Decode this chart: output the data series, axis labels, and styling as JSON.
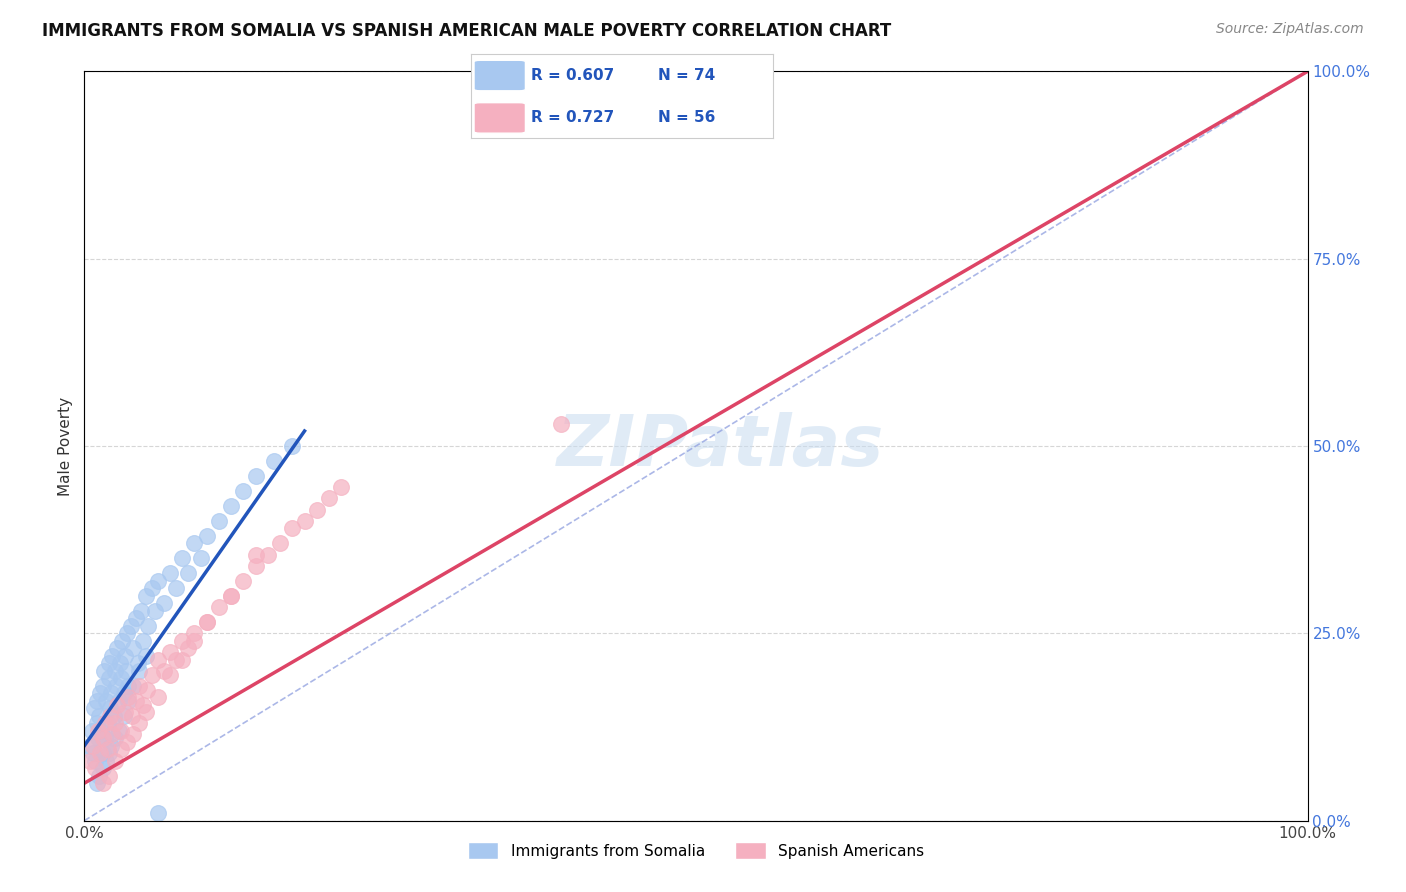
{
  "title": "IMMIGRANTS FROM SOMALIA VS SPANISH AMERICAN MALE POVERTY CORRELATION CHART",
  "source": "Source: ZipAtlas.com",
  "ylabel": "Male Poverty",
  "xlim": [
    0,
    1
  ],
  "ylim": [
    0,
    1
  ],
  "y_ticks_right": [
    0.0,
    0.25,
    0.5,
    0.75,
    1.0
  ],
  "y_tick_labels_right": [
    "0.0%",
    "25.0%",
    "50.0%",
    "75.0%",
    "100.0%"
  ],
  "blue_color": "#A8C8F0",
  "pink_color": "#F5B0C0",
  "blue_line_color": "#2255BB",
  "pink_line_color": "#DD4466",
  "diag_color": "#8899DD",
  "R_blue": 0.607,
  "N_blue": 74,
  "R_pink": 0.727,
  "N_pink": 56,
  "legend_label_blue": "Immigrants from Somalia",
  "legend_label_pink": "Spanish Americans",
  "watermark_text": "ZIPatlas",
  "blue_trend_x": [
    0.0,
    0.18
  ],
  "blue_trend_y": [
    0.1,
    0.52
  ],
  "pink_trend_x": [
    0.0,
    1.0
  ],
  "pink_trend_y": [
    0.05,
    1.0
  ],
  "title_fontsize": 12,
  "axis_label_fontsize": 11,
  "tick_fontsize": 11,
  "source_fontsize": 10,
  "background_color": "#FFFFFF",
  "grid_color": "#CCCCCC",
  "blue_scatter_x": [
    0.005,
    0.006,
    0.007,
    0.008,
    0.009,
    0.01,
    0.01,
    0.011,
    0.012,
    0.013,
    0.014,
    0.015,
    0.015,
    0.016,
    0.017,
    0.018,
    0.019,
    0.02,
    0.02,
    0.021,
    0.022,
    0.023,
    0.024,
    0.025,
    0.026,
    0.027,
    0.028,
    0.029,
    0.03,
    0.031,
    0.032,
    0.033,
    0.034,
    0.035,
    0.036,
    0.038,
    0.04,
    0.042,
    0.044,
    0.046,
    0.048,
    0.05,
    0.052,
    0.055,
    0.058,
    0.06,
    0.065,
    0.07,
    0.075,
    0.08,
    0.085,
    0.09,
    0.095,
    0.1,
    0.11,
    0.12,
    0.13,
    0.14,
    0.155,
    0.17,
    0.01,
    0.012,
    0.015,
    0.018,
    0.02,
    0.022,
    0.025,
    0.028,
    0.032,
    0.036,
    0.04,
    0.045,
    0.05,
    0.06
  ],
  "blue_scatter_y": [
    0.1,
    0.12,
    0.09,
    0.15,
    0.08,
    0.13,
    0.16,
    0.11,
    0.14,
    0.17,
    0.12,
    0.18,
    0.09,
    0.2,
    0.11,
    0.16,
    0.13,
    0.19,
    0.21,
    0.15,
    0.17,
    0.22,
    0.14,
    0.2,
    0.18,
    0.23,
    0.16,
    0.21,
    0.19,
    0.24,
    0.17,
    0.22,
    0.2,
    0.25,
    0.18,
    0.26,
    0.23,
    0.27,
    0.21,
    0.28,
    0.24,
    0.3,
    0.26,
    0.31,
    0.28,
    0.32,
    0.29,
    0.33,
    0.31,
    0.35,
    0.33,
    0.37,
    0.35,
    0.38,
    0.4,
    0.42,
    0.44,
    0.46,
    0.48,
    0.5,
    0.05,
    0.06,
    0.07,
    0.08,
    0.09,
    0.1,
    0.11,
    0.12,
    0.14,
    0.16,
    0.18,
    0.2,
    0.22,
    0.01
  ],
  "pink_scatter_x": [
    0.005,
    0.007,
    0.009,
    0.011,
    0.013,
    0.015,
    0.017,
    0.019,
    0.021,
    0.023,
    0.025,
    0.027,
    0.03,
    0.033,
    0.036,
    0.039,
    0.042,
    0.045,
    0.048,
    0.051,
    0.055,
    0.06,
    0.065,
    0.07,
    0.075,
    0.08,
    0.085,
    0.09,
    0.1,
    0.11,
    0.12,
    0.13,
    0.14,
    0.15,
    0.16,
    0.17,
    0.18,
    0.19,
    0.2,
    0.21,
    0.015,
    0.02,
    0.025,
    0.03,
    0.035,
    0.04,
    0.045,
    0.05,
    0.06,
    0.07,
    0.08,
    0.09,
    0.1,
    0.12,
    0.14,
    0.39
  ],
  "pink_scatter_y": [
    0.08,
    0.1,
    0.07,
    0.12,
    0.09,
    0.11,
    0.13,
    0.095,
    0.14,
    0.115,
    0.13,
    0.155,
    0.12,
    0.145,
    0.165,
    0.14,
    0.16,
    0.18,
    0.155,
    0.175,
    0.195,
    0.215,
    0.2,
    0.225,
    0.215,
    0.24,
    0.23,
    0.25,
    0.265,
    0.285,
    0.3,
    0.32,
    0.34,
    0.355,
    0.37,
    0.39,
    0.4,
    0.415,
    0.43,
    0.445,
    0.05,
    0.06,
    0.08,
    0.095,
    0.105,
    0.115,
    0.13,
    0.145,
    0.165,
    0.195,
    0.215,
    0.24,
    0.265,
    0.3,
    0.355,
    0.53
  ]
}
